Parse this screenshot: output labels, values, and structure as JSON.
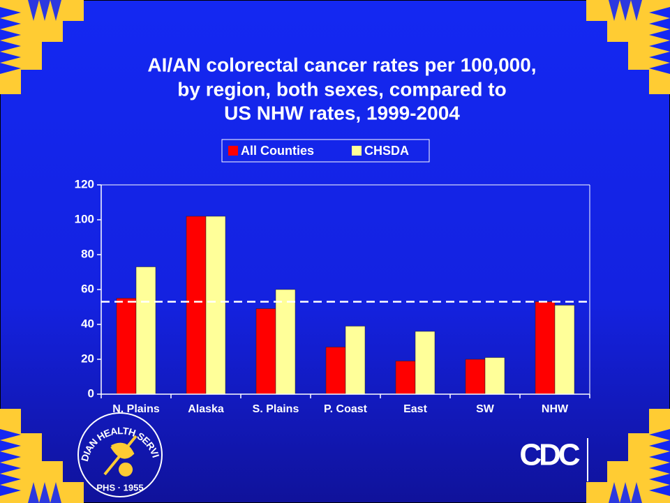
{
  "chart_data": {
    "type": "bar",
    "title": [
      "AI/AN colorectal cancer rates per 100,000,",
      "by region, both sexes, compared to",
      "US NHW rates, 1999-2004"
    ],
    "categories": [
      "N. Plains",
      "Alaska",
      "S. Plains",
      "P. Coast",
      "East",
      "SW",
      "NHW"
    ],
    "series": [
      {
        "name": "All Counties",
        "color": "#ff0000",
        "values": [
          55,
          102,
          49,
          27,
          19,
          20,
          53
        ]
      },
      {
        "name": "CHSDA",
        "color": "#ffff99",
        "values": [
          73,
          102,
          60,
          39,
          36,
          21,
          51
        ]
      }
    ],
    "reference_line": 53,
    "ylim": [
      0,
      120
    ],
    "yticks": [
      0,
      20,
      40,
      60,
      80,
      100,
      120
    ],
    "legend": "top"
  },
  "logos": {
    "ihs": "INDIAN HEALTH SERVICE",
    "ihs_sub": "PHS · 1955",
    "cdc": "CDC"
  }
}
